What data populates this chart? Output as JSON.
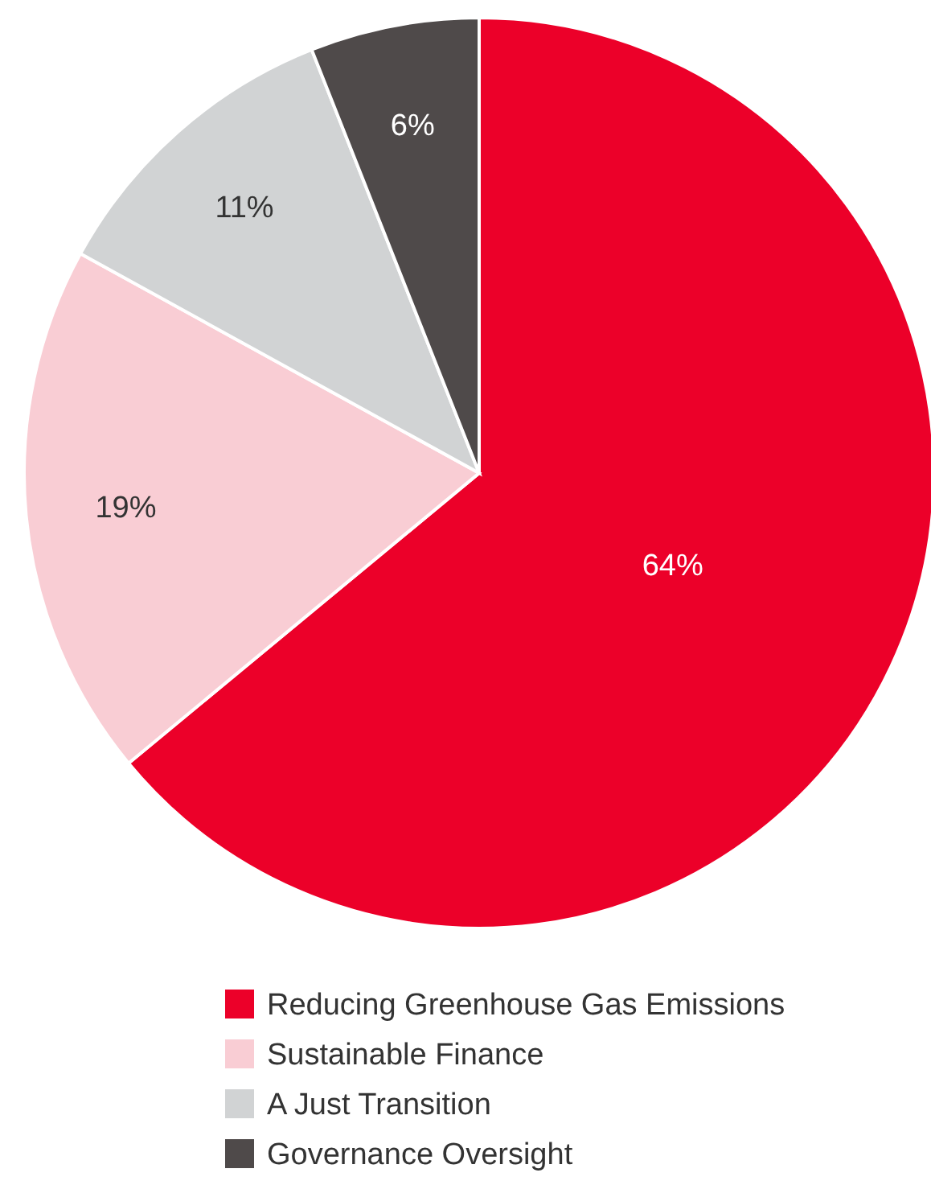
{
  "chart_data": {
    "type": "pie",
    "categories": [
      "Reducing Greenhouse Gas Emissions",
      "Sustainable Finance",
      "A Just Transition",
      "Governance Oversight"
    ],
    "values": [
      64,
      19,
      11,
      6
    ],
    "colors": [
      "#ec0029",
      "#f9cdd4",
      "#d1d3d4",
      "#4f4a4a"
    ],
    "value_labels": [
      "64%",
      "19%",
      "11%",
      "6%"
    ],
    "legend": "bottom"
  }
}
